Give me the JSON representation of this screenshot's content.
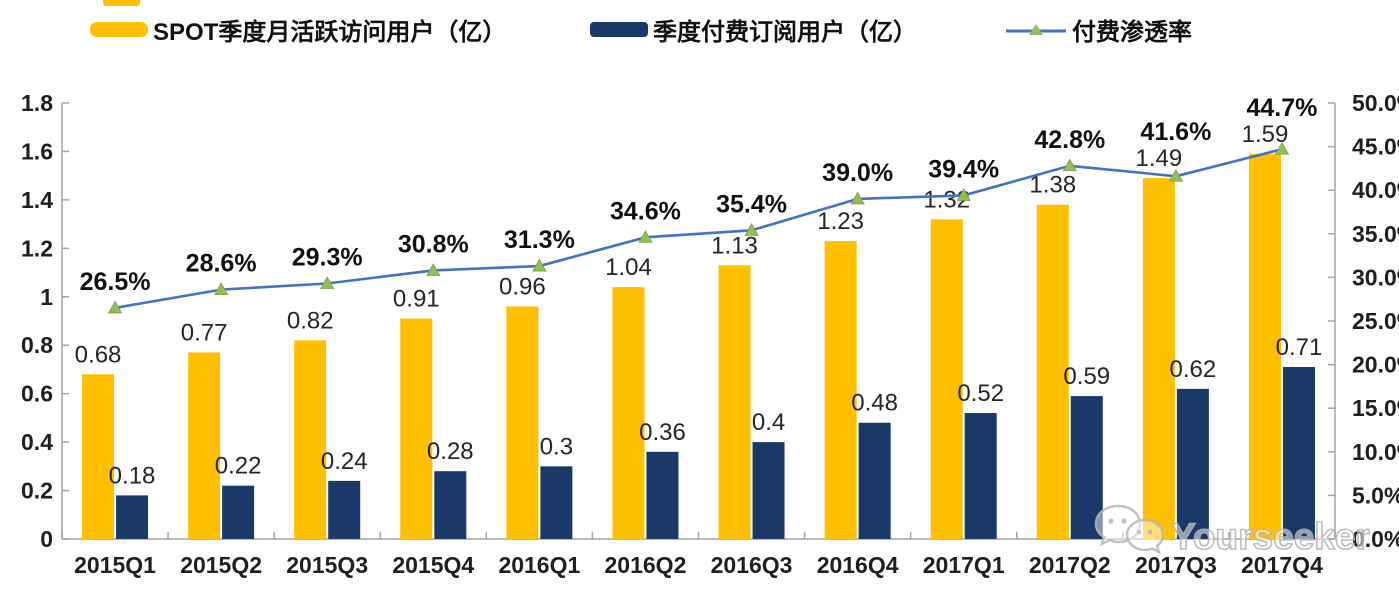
{
  "legend": {
    "items": [
      {
        "label": "SPOT季度月活跃访问用户（亿）",
        "swatch": "bar",
        "color": "#FFC000"
      },
      {
        "label": "季度付费订阅用户（亿）",
        "swatch": "bar",
        "color": "#1A3868"
      },
      {
        "label": "付费渗透率",
        "swatch": "line-with-triangle-marker",
        "line_color": "#4472C4",
        "marker_color": "#94BD57"
      }
    ]
  },
  "chart_data": {
    "type": "bar+line combo",
    "categories": [
      "2015Q1",
      "2015Q2",
      "2015Q3",
      "2015Q4",
      "2016Q1",
      "2016Q2",
      "2016Q3",
      "2016Q4",
      "2017Q1",
      "2017Q2",
      "2017Q3",
      "2017Q4"
    ],
    "series": [
      {
        "name": "SPOT季度月活跃访问用户（亿）",
        "type": "bar",
        "axis": "left",
        "color": "#FFC000",
        "values": [
          0.68,
          0.77,
          0.82,
          0.91,
          0.96,
          1.04,
          1.13,
          1.23,
          1.32,
          1.38,
          1.49,
          1.59
        ],
        "labels": [
          "0.68",
          "0.77",
          "0.82",
          "0.91",
          "0.96",
          "1.04",
          "1.13",
          "1.23",
          "1.32",
          "1.38",
          "1.49",
          "1.59"
        ]
      },
      {
        "name": "季度付费订阅用户（亿）",
        "type": "bar",
        "axis": "left",
        "color": "#1A3868",
        "values": [
          0.18,
          0.22,
          0.24,
          0.28,
          0.3,
          0.36,
          0.4,
          0.48,
          0.52,
          0.59,
          0.62,
          0.71
        ],
        "labels": [
          "0.18",
          "0.22",
          "0.24",
          "0.28",
          "0.3",
          "0.36",
          "0.4",
          "0.48",
          "0.52",
          "0.59",
          "0.62",
          "0.71"
        ]
      },
      {
        "name": "付费渗透率",
        "type": "line",
        "axis": "right",
        "color": "#4472C4",
        "marker": "triangle",
        "marker_color": "#94BD57",
        "values": [
          26.5,
          28.6,
          29.3,
          30.8,
          31.3,
          34.6,
          35.4,
          39.0,
          39.4,
          42.8,
          41.6,
          44.7
        ],
        "labels": [
          "26.5%",
          "28.6%",
          "29.3%",
          "30.8%",
          "31.3%",
          "34.6%",
          "35.4%",
          "39.0%",
          "39.4%",
          "42.8%",
          "41.6%",
          "44.7%"
        ]
      }
    ],
    "left_axis": {
      "min": 0,
      "max": 1.8,
      "step": 0.2,
      "tick_labels": [
        "0",
        "0.2",
        "0.4",
        "0.6",
        "0.8",
        "1",
        "1.2",
        "1.4",
        "1.6",
        "1.8"
      ]
    },
    "right_axis": {
      "min": 0,
      "max": 50,
      "step": 5,
      "tick_labels": [
        "0.0%",
        "5.0%",
        "10.0%",
        "15.0%",
        "20.0%",
        "25.0%",
        "30.0%",
        "35.0%",
        "40.0%",
        "45.0%",
        "50.0%"
      ]
    },
    "grid": false,
    "legend_position": "top"
  },
  "watermark": {
    "text": "Yourseeker",
    "icon": "wechat-icon"
  }
}
